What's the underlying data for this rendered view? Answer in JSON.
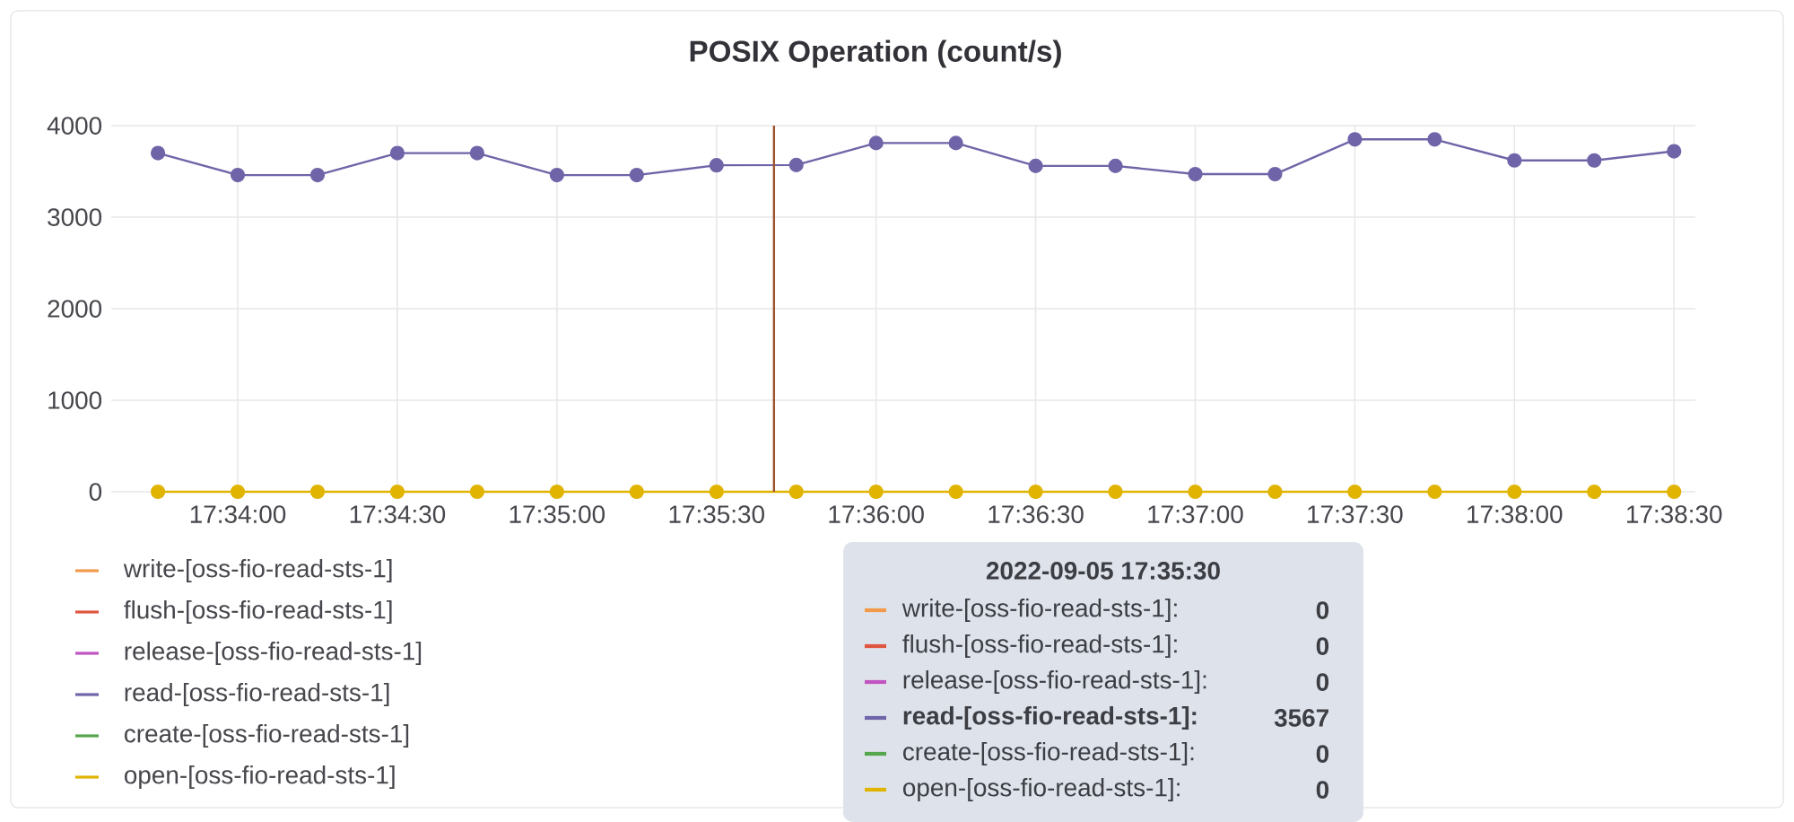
{
  "chart_data": {
    "type": "line",
    "title": "POSIX Operation (count/s)",
    "x": [
      17.5625,
      17.566667,
      17.570833,
      17.575,
      17.579167,
      17.583333,
      17.5875,
      17.591667,
      17.595833,
      17.6,
      17.604167,
      17.608333,
      17.6125,
      17.616667,
      17.620833,
      17.625,
      17.629167,
      17.633333,
      17.6375,
      17.641667
    ],
    "series": [
      {
        "name": "write-[oss-fio-read-sts-1]",
        "color": "#f2994a",
        "values": [
          null,
          null,
          null,
          null,
          null,
          null,
          null,
          null,
          null,
          null,
          null,
          null,
          null,
          null,
          null,
          null,
          null,
          null,
          null,
          null
        ]
      },
      {
        "name": "flush-[oss-fio-read-sts-1]",
        "color": "#e0553f",
        "values": [
          null,
          null,
          null,
          null,
          null,
          null,
          null,
          null,
          null,
          null,
          null,
          null,
          null,
          null,
          null,
          null,
          null,
          null,
          null,
          null
        ]
      },
      {
        "name": "release-[oss-fio-read-sts-1]",
        "color": "#c154c1",
        "values": [
          null,
          null,
          null,
          null,
          null,
          null,
          null,
          null,
          null,
          null,
          null,
          null,
          null,
          null,
          null,
          null,
          null,
          null,
          null,
          null
        ]
      },
      {
        "name": "read-[oss-fio-read-sts-1]",
        "color": "#7064a8",
        "values": [
          3700,
          3460,
          3460,
          3700,
          3700,
          3460,
          3460,
          3567,
          3570,
          3810,
          3810,
          3560,
          3560,
          3470,
          3470,
          3850,
          3850,
          3620,
          3620,
          3720
        ]
      },
      {
        "name": "create-[oss-fio-read-sts-1]",
        "color": "#56a64b",
        "values": [
          null,
          null,
          null,
          null,
          null,
          null,
          null,
          null,
          null,
          null,
          null,
          null,
          null,
          null,
          null,
          null,
          null,
          null,
          null,
          null
        ]
      },
      {
        "name": "open-[oss-fio-read-sts-1]",
        "color": "#e0b400",
        "values": [
          0,
          0,
          0,
          0,
          0,
          0,
          0,
          0,
          0,
          0,
          0,
          0,
          0,
          0,
          0,
          0,
          0,
          0,
          0,
          0
        ]
      }
    ],
    "xlim": [
      17.56006,
      17.64278
    ],
    "xticks": [
      {
        "value": 17.566667,
        "label": "17:34:00"
      },
      {
        "value": 17.575,
        "label": "17:34:30"
      },
      {
        "value": 17.583333,
        "label": "17:35:00"
      },
      {
        "value": 17.591667,
        "label": "17:35:30"
      },
      {
        "value": 17.6,
        "label": "17:36:00"
      },
      {
        "value": 17.608333,
        "label": "17:36:30"
      },
      {
        "value": 17.616667,
        "label": "17:37:00"
      },
      {
        "value": 17.625,
        "label": "17:37:30"
      },
      {
        "value": 17.633333,
        "label": "17:38:00"
      },
      {
        "value": 17.641667,
        "label": "17:38:30"
      }
    ],
    "ylim": [
      0,
      4000
    ],
    "yticks": [
      0,
      1000,
      2000,
      3000,
      4000
    ],
    "grid": true,
    "marker": "circle",
    "line_style": "solid",
    "legend": "bottom",
    "ref_lines": [
      {
        "axis": "x",
        "value": 17.594667,
        "color": "#a0522d"
      }
    ],
    "annotations": [
      "2022-09-05 17:35:30",
      "write-[oss-fio-read-sts-1]:",
      "0",
      "flush-[oss-fio-read-sts-1]:",
      "0",
      "release-[oss-fio-read-sts-1]:",
      "0",
      "read-[oss-fio-read-sts-1]:",
      "3567",
      "create-[oss-fio-read-sts-1]:",
      "0",
      "open-[oss-fio-read-sts-1]:",
      "0"
    ]
  }
}
